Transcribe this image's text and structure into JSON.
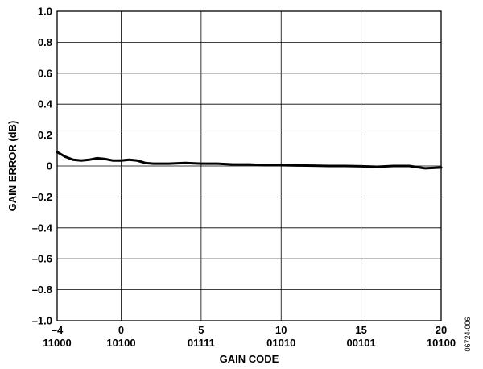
{
  "chart_data": {
    "type": "line",
    "xlabel": "GAIN CODE",
    "ylabel": "GAIN ERROR (dB)",
    "xlim": [
      -4,
      20
    ],
    "ylim": [
      -1.0,
      1.0
    ],
    "grid": true,
    "x_ticks": [
      {
        "value": -4,
        "label": "–4",
        "code": "11000"
      },
      {
        "value": 0,
        "label": "0",
        "code": "10100"
      },
      {
        "value": 5,
        "label": "5",
        "code": "01111"
      },
      {
        "value": 10,
        "label": "10",
        "code": "01010"
      },
      {
        "value": 15,
        "label": "15",
        "code": "00101"
      },
      {
        "value": 20,
        "label": "20",
        "code": "10100"
      }
    ],
    "y_ticks": [
      {
        "value": 1.0,
        "label": "1.0"
      },
      {
        "value": 0.8,
        "label": "0.8"
      },
      {
        "value": 0.6,
        "label": "0.6"
      },
      {
        "value": 0.4,
        "label": "0.4"
      },
      {
        "value": 0.2,
        "label": "0.2"
      },
      {
        "value": 0.0,
        "label": "0"
      },
      {
        "value": -0.2,
        "label": "–0.2"
      },
      {
        "value": -0.4,
        "label": "–0.4"
      },
      {
        "value": -0.6,
        "label": "–0.6"
      },
      {
        "value": -0.8,
        "label": "–0.8"
      },
      {
        "value": -1.0,
        "label": "–1.0"
      }
    ],
    "series": [
      {
        "color": "#000000",
        "x": [
          -4,
          -3.5,
          -3,
          -2.5,
          -2,
          -1.5,
          -1,
          -0.5,
          0,
          0.5,
          1,
          1.5,
          2,
          3,
          4,
          5,
          6,
          7,
          8,
          9,
          10,
          11,
          12,
          13,
          14,
          15,
          16,
          17,
          18,
          19,
          20
        ],
        "y": [
          0.09,
          0.06,
          0.04,
          0.035,
          0.04,
          0.05,
          0.045,
          0.035,
          0.035,
          0.04,
          0.035,
          0.02,
          0.015,
          0.015,
          0.02,
          0.015,
          0.015,
          0.01,
          0.01,
          0.005,
          0.005,
          0.003,
          0.002,
          0.0,
          0.0,
          -0.002,
          -0.005,
          0.0,
          0.0,
          -0.015,
          -0.01
        ]
      }
    ]
  },
  "figure_id": "06724-006"
}
